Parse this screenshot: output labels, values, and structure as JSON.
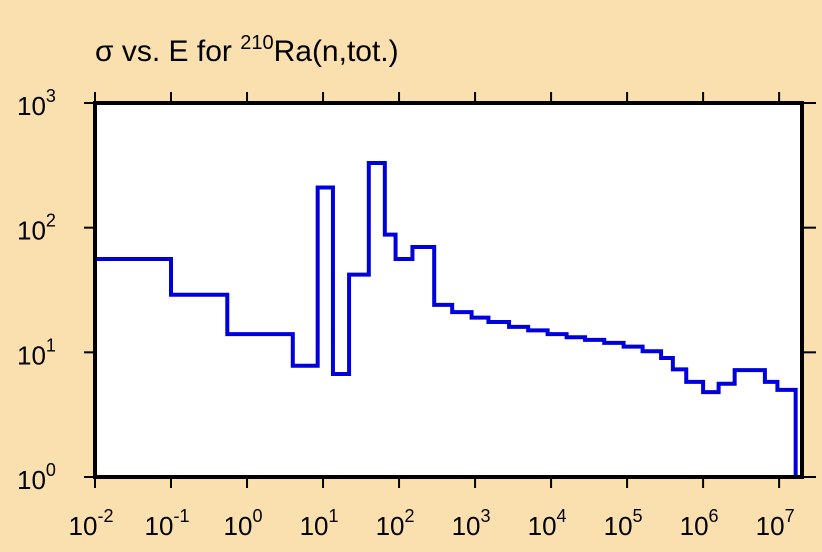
{
  "chart_data": {
    "type": "line",
    "step": true,
    "title": {
      "prefix": "σ vs. E for ",
      "superscript": "210",
      "suffix": "Ra(n,tot.)"
    },
    "xlabel": "",
    "ylabel": "",
    "x_scale": "log",
    "y_scale": "log",
    "xlim": [
      0.01,
      20000000
    ],
    "ylim": [
      1,
      1000
    ],
    "x_ticks": [
      {
        "base": "10",
        "exp": "-2",
        "value": 0.01
      },
      {
        "base": "10",
        "exp": "-1",
        "value": 0.1
      },
      {
        "base": "10",
        "exp": "0",
        "value": 1
      },
      {
        "base": "10",
        "exp": "1",
        "value": 10
      },
      {
        "base": "10",
        "exp": "2",
        "value": 100
      },
      {
        "base": "10",
        "exp": "3",
        "value": 1000
      },
      {
        "base": "10",
        "exp": "4",
        "value": 10000
      },
      {
        "base": "10",
        "exp": "5",
        "value": 100000
      },
      {
        "base": "10",
        "exp": "6",
        "value": 1000000
      },
      {
        "base": "10",
        "exp": "7",
        "value": 10000000
      }
    ],
    "y_ticks": [
      {
        "base": "10",
        "exp": "0",
        "value": 1
      },
      {
        "base": "10",
        "exp": "1",
        "value": 10
      },
      {
        "base": "10",
        "exp": "2",
        "value": 100
      },
      {
        "base": "10",
        "exp": "3",
        "value": 1000
      }
    ],
    "grid": false,
    "line_color": "#0000DD",
    "background_color": "#FADFAF",
    "plot_background_color": "#FFFFFF",
    "series": [
      {
        "steps": [
          {
            "x_start": 0.01,
            "x_end": 0.1,
            "y": 56
          },
          {
            "x_start": 0.1,
            "x_end": 0.55,
            "y": 29
          },
          {
            "x_start": 0.55,
            "x_end": 4.0,
            "y": 14
          },
          {
            "x_start": 4.0,
            "x_end": 8.5,
            "y": 7.8
          },
          {
            "x_start": 8.5,
            "x_end": 13.5,
            "y": 210
          },
          {
            "x_start": 13.5,
            "x_end": 22,
            "y": 6.7
          },
          {
            "x_start": 22,
            "x_end": 40,
            "y": 42
          },
          {
            "x_start": 40,
            "x_end": 65,
            "y": 330
          },
          {
            "x_start": 65,
            "x_end": 90,
            "y": 88
          },
          {
            "x_start": 90,
            "x_end": 150,
            "y": 56
          },
          {
            "x_start": 150,
            "x_end": 290,
            "y": 70
          },
          {
            "x_start": 290,
            "x_end": 500,
            "y": 24
          },
          {
            "x_start": 500,
            "x_end": 900,
            "y": 21
          },
          {
            "x_start": 900,
            "x_end": 1500,
            "y": 19
          },
          {
            "x_start": 1500,
            "x_end": 2800,
            "y": 17.5
          },
          {
            "x_start": 2800,
            "x_end": 5000,
            "y": 16
          },
          {
            "x_start": 5000,
            "x_end": 9000,
            "y": 15
          },
          {
            "x_start": 9000,
            "x_end": 16000,
            "y": 14
          },
          {
            "x_start": 16000,
            "x_end": 28000,
            "y": 13.2
          },
          {
            "x_start": 28000,
            "x_end": 50000,
            "y": 12.6
          },
          {
            "x_start": 50000,
            "x_end": 90000,
            "y": 11.9
          },
          {
            "x_start": 90000,
            "x_end": 160000,
            "y": 11.1
          },
          {
            "x_start": 160000,
            "x_end": 280000,
            "y": 10.2
          },
          {
            "x_start": 280000,
            "x_end": 400000,
            "y": 9.0
          },
          {
            "x_start": 400000,
            "x_end": 600000,
            "y": 7.3
          },
          {
            "x_start": 600000,
            "x_end": 1000000,
            "y": 5.8
          },
          {
            "x_start": 1000000,
            "x_end": 1600000,
            "y": 4.8
          },
          {
            "x_start": 1600000,
            "x_end": 2600000,
            "y": 5.6
          },
          {
            "x_start": 2600000,
            "x_end": 6500000,
            "y": 7.2
          },
          {
            "x_start": 6500000,
            "x_end": 9500000,
            "y": 5.8
          },
          {
            "x_start": 9500000,
            "x_end": 16500000,
            "y": 5.0
          }
        ]
      }
    ]
  }
}
